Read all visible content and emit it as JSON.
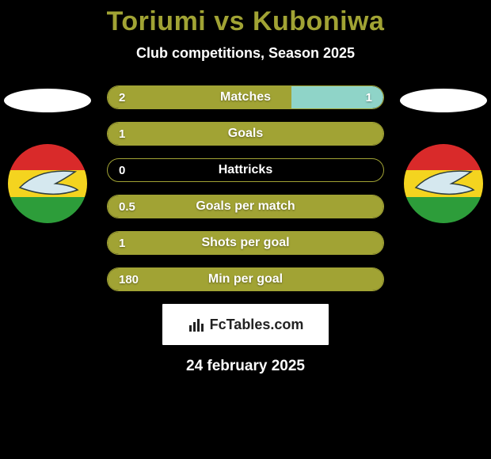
{
  "title_color": "#a1a334",
  "title": "Toriumi vs Kuboniwa",
  "subtitle": "Club competitions, Season 2025",
  "date": "24 february 2025",
  "player_left": {
    "ellipse_color": "#ffffff",
    "crest": {
      "top": "#d92a2a",
      "middle": "#f4d41f",
      "bottom": "#2d9d3a",
      "bird": "#d5e8ef"
    }
  },
  "player_right": {
    "ellipse_color": "#ffffff",
    "crest": {
      "top": "#d92a2a",
      "middle": "#f4d41f",
      "bottom": "#2d9d3a",
      "bird": "#d5e8ef"
    }
  },
  "bar_style": {
    "border_color": "#a1a334",
    "left_color": "#a1a334",
    "right_color": "#8fd4c8",
    "neutral_bg": "#000000"
  },
  "bars": [
    {
      "label": "Matches",
      "left_val": "2",
      "right_val": "1",
      "left_pct": 66.7,
      "right_pct": 33.3
    },
    {
      "label": "Goals",
      "left_val": "1",
      "right_val": "",
      "left_pct": 100,
      "right_pct": 0
    },
    {
      "label": "Hattricks",
      "left_val": "0",
      "right_val": "",
      "left_pct": 0,
      "right_pct": 0
    },
    {
      "label": "Goals per match",
      "left_val": "0.5",
      "right_val": "",
      "left_pct": 100,
      "right_pct": 0
    },
    {
      "label": "Shots per goal",
      "left_val": "1",
      "right_val": "",
      "left_pct": 100,
      "right_pct": 0
    },
    {
      "label": "Min per goal",
      "left_val": "180",
      "right_val": "",
      "left_pct": 100,
      "right_pct": 0
    }
  ],
  "branding": "FcTables.com"
}
